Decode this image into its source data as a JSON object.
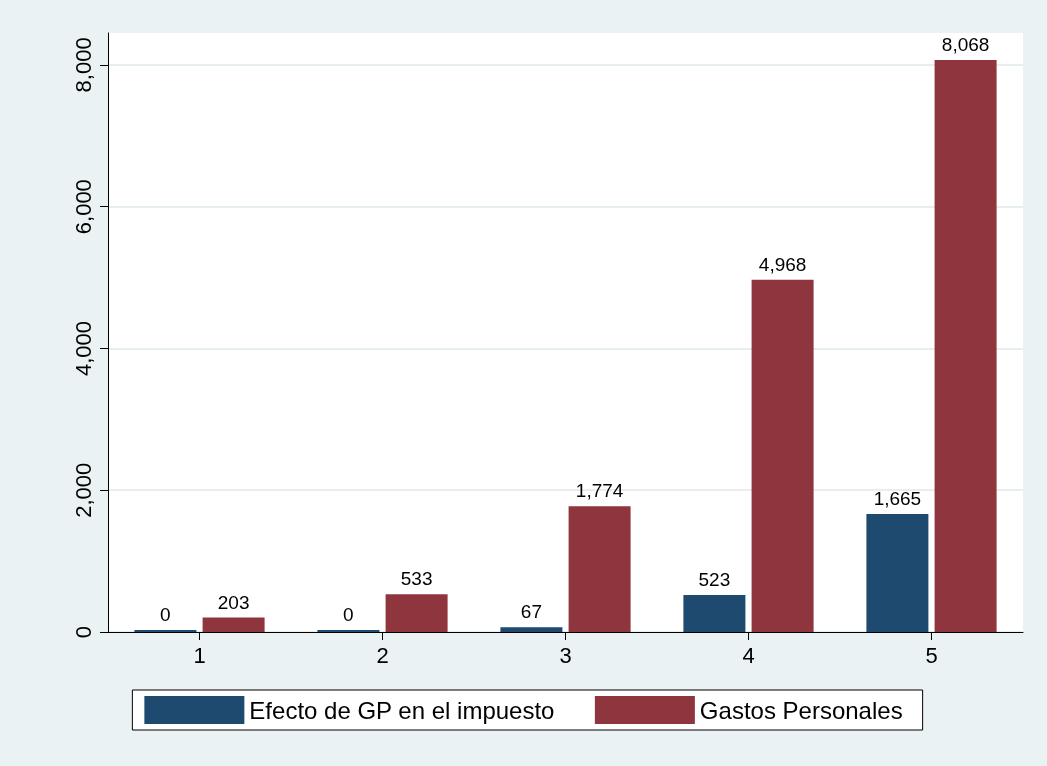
{
  "chart_data": {
    "type": "bar",
    "categories": [
      "1",
      "2",
      "3",
      "4",
      "5"
    ],
    "series": [
      {
        "name": "Efecto de GP en el impuesto",
        "color": "#1d4a6e",
        "values": [
          0,
          0,
          67,
          523,
          1665
        ],
        "value_labels": [
          "0",
          "0",
          "67",
          "523",
          "1,665"
        ]
      },
      {
        "name": "Gastos Personales",
        "color": "#8f353d",
        "values": [
          203,
          533,
          1774,
          4968,
          8068
        ],
        "value_labels": [
          "203",
          "533",
          "1,774",
          "4,968",
          "8,068"
        ]
      }
    ],
    "ylim": [
      0,
      8450
    ],
    "yticks": [
      0,
      {
        "value": 2000,
        "label": "2,000"
      },
      {
        "value": 4000,
        "label": "4,000"
      },
      {
        "value": 6000,
        "label": "6,000"
      },
      {
        "value": 8000,
        "label": "8,000"
      }
    ],
    "grid": "y",
    "legend": "bottom"
  }
}
